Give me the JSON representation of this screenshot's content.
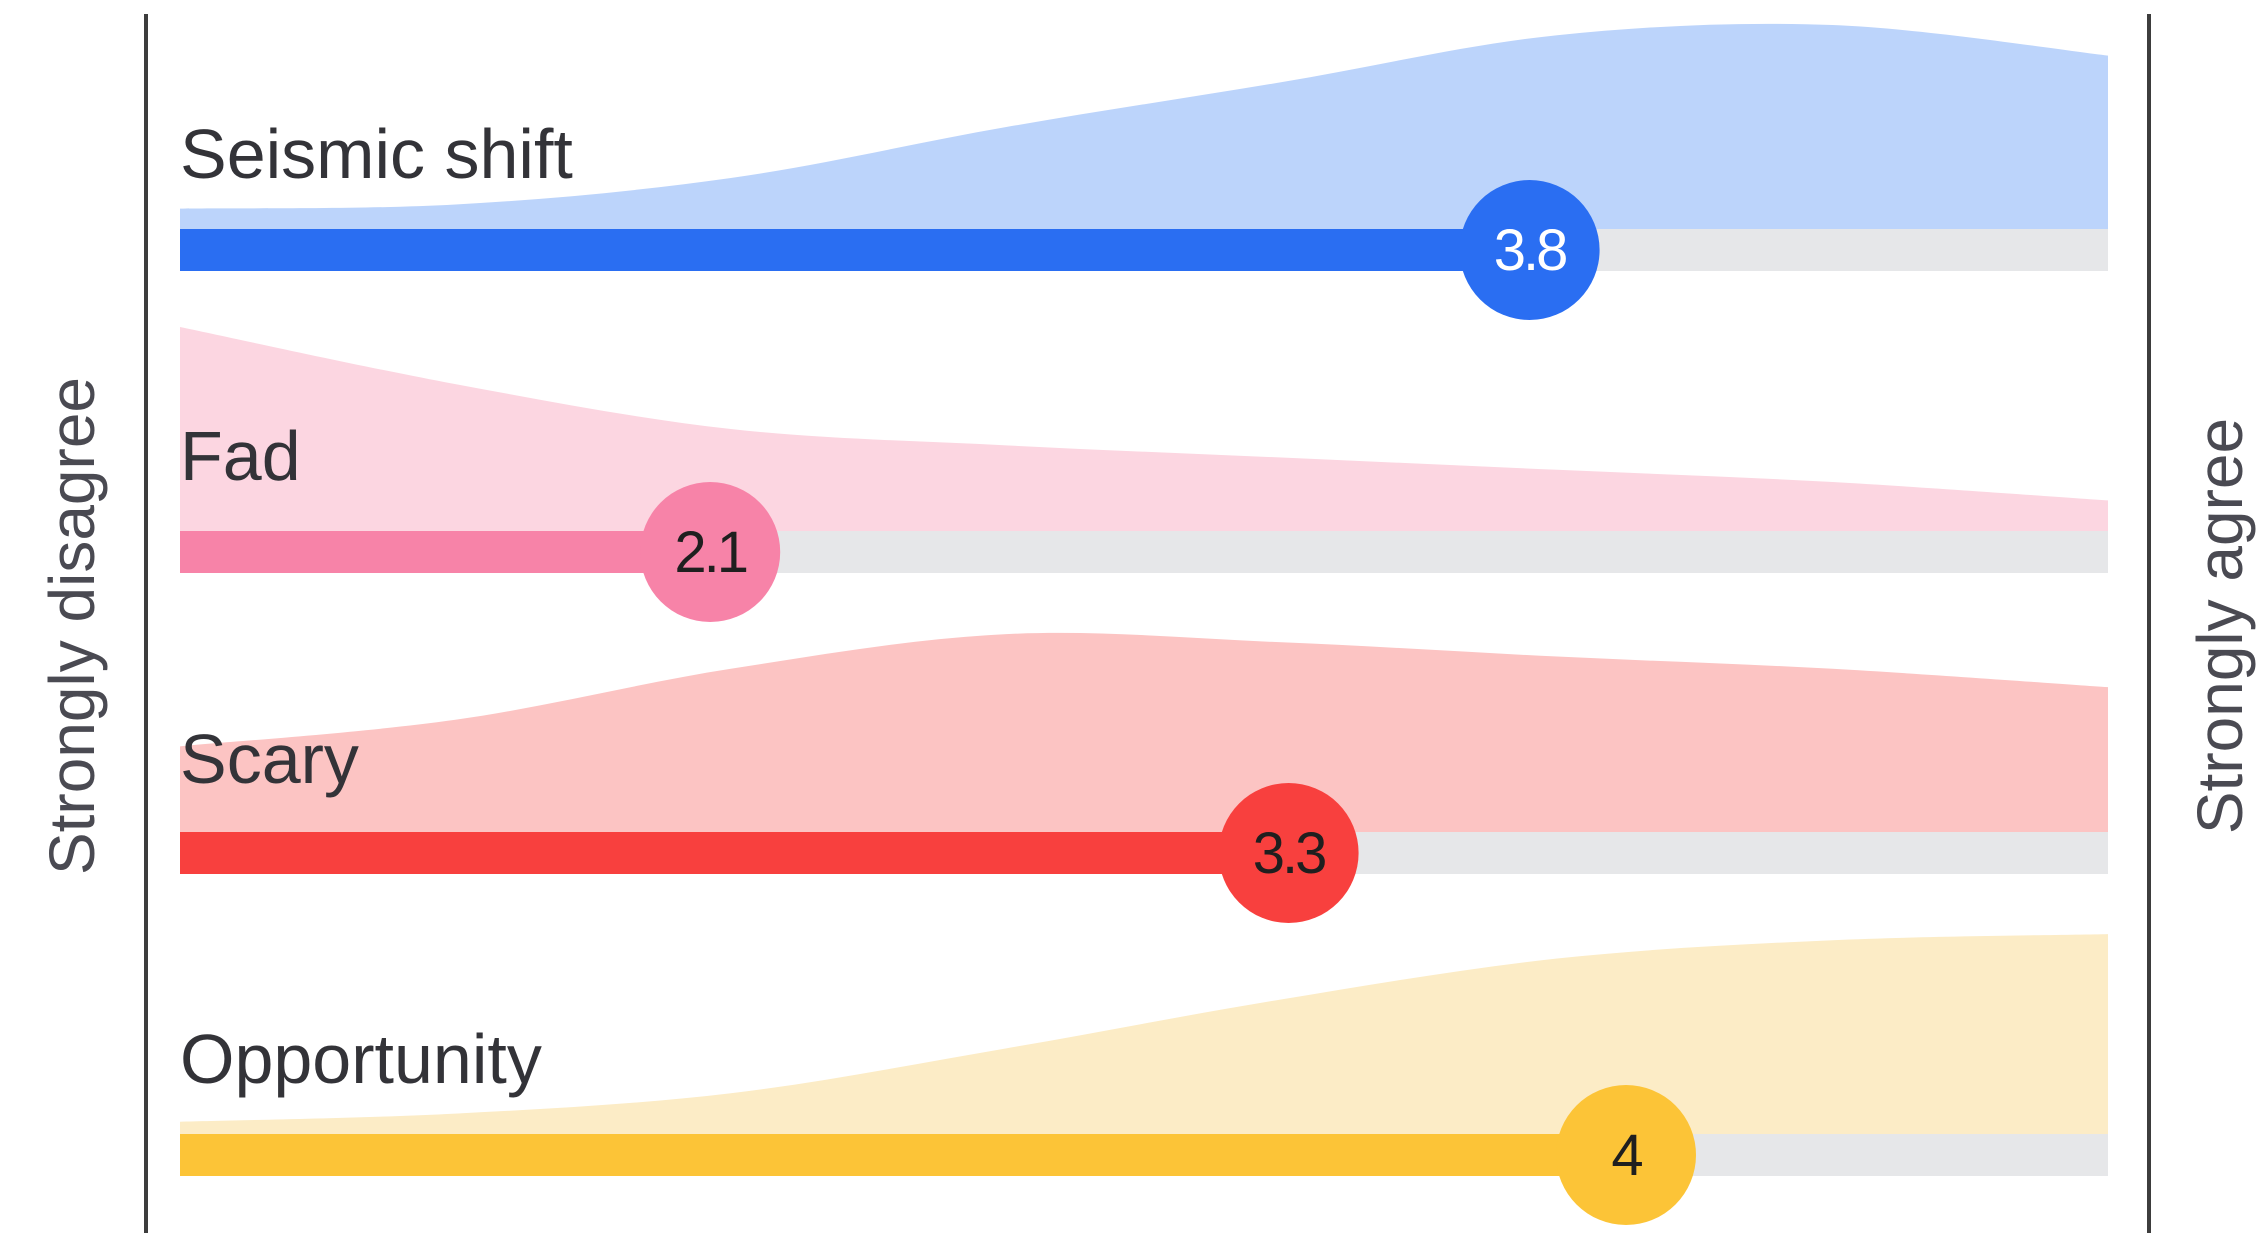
{
  "chart_data": {
    "type": "area",
    "scale": {
      "min": 1,
      "max": 5
    },
    "left_label": "Strongly disagree",
    "right_label": "Strongly agree",
    "rows": [
      {
        "label": "Seismic shift",
        "value": 3.8,
        "value_label": "3.8",
        "color": "#2a6ef2",
        "fill": "#bcd4fb",
        "label_color": "#ffffff",
        "distribution": [
          0.1,
          0.12,
          0.25,
          0.5,
          0.72,
          0.95,
          1.0,
          0.85
        ]
      },
      {
        "label": "Fad",
        "value": 2.1,
        "value_label": "2.1",
        "color": "#f783a8",
        "fill": "#fcd6e1",
        "label_color": "#1f1f1f",
        "distribution": [
          1.0,
          0.72,
          0.5,
          0.42,
          0.36,
          0.3,
          0.24,
          0.15
        ]
      },
      {
        "label": "Scary",
        "value": 3.3,
        "value_label": "3.3",
        "color": "#f8403e",
        "fill": "#fcc4c3",
        "label_color": "#1f1f1f",
        "distribution": [
          0.42,
          0.55,
          0.8,
          0.97,
          0.93,
          0.86,
          0.8,
          0.71
        ]
      },
      {
        "label": "Opportunity",
        "value": 4.0,
        "value_label": "4",
        "color": "#fcc437",
        "fill": "#fcecc6",
        "label_color": "#1f1f1f",
        "distribution": [
          0.06,
          0.1,
          0.2,
          0.42,
          0.66,
          0.86,
          0.95,
          0.98
        ]
      }
    ],
    "track_color": "#e6e7e9",
    "text_color": "#333338"
  }
}
